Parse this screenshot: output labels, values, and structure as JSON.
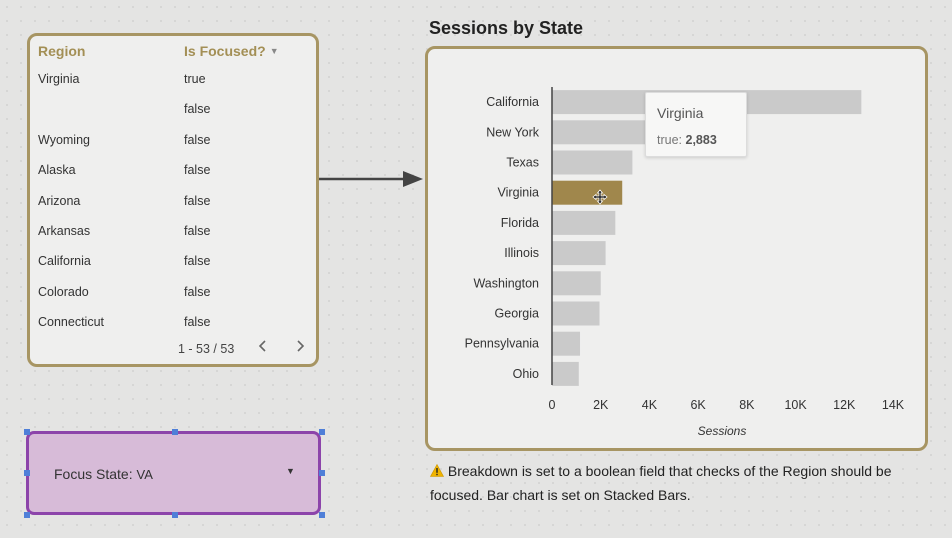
{
  "table": {
    "headers": {
      "region": "Region",
      "focused": "Is Focused?"
    },
    "rows": [
      {
        "region": "Virginia",
        "flag": "true"
      },
      {
        "region": "",
        "flag": "false"
      },
      {
        "region": "Wyoming",
        "flag": "false"
      },
      {
        "region": "Alaska",
        "flag": "false"
      },
      {
        "region": "Arizona",
        "flag": "false"
      },
      {
        "region": "Arkansas",
        "flag": "false"
      },
      {
        "region": "California",
        "flag": "false"
      },
      {
        "region": "Colorado",
        "flag": "false"
      },
      {
        "region": "Connecticut",
        "flag": "false"
      }
    ],
    "pagination": "1 - 53 / 53",
    "prev_icon": "chevron-left",
    "next_icon": "chevron-right"
  },
  "filter": {
    "label": "Focus State",
    "value": "VA"
  },
  "chart": {
    "title": "Sessions by State"
  },
  "chart_data": {
    "type": "bar",
    "orientation": "horizontal",
    "stacked": true,
    "categories": [
      "California",
      "New York",
      "Texas",
      "Virginia",
      "Florida",
      "Illinois",
      "Washington",
      "Georgia",
      "Pennsylvania",
      "Ohio"
    ],
    "series": [
      {
        "name": "false",
        "values": [
          12700,
          4600,
          3300,
          0,
          2600,
          2200,
          2000,
          1950,
          1150,
          1100
        ]
      },
      {
        "name": "true",
        "values": [
          0,
          0,
          0,
          2883,
          0,
          0,
          0,
          0,
          0,
          0
        ]
      }
    ],
    "xlabel": "Sessions",
    "xlim": [
      0,
      14000
    ],
    "xticks": [
      "0",
      "2K",
      "4K",
      "6K",
      "8K",
      "10K",
      "12K",
      "14K"
    ],
    "colors": {
      "false": "#cacaca",
      "true": "#a0874c"
    },
    "grid": false
  },
  "tooltip": {
    "title": "Virginia",
    "label": "true:",
    "value": "2,883"
  },
  "note": "Breakdown is set to a boolean field that checks of the Region should be focused. Bar chart is set on Stacked Bars.",
  "icons": {
    "warning": "warning-icon",
    "move": "move-cursor-icon",
    "sort": "sort-desc-icon",
    "dropdown": "dropdown-caret-icon"
  }
}
